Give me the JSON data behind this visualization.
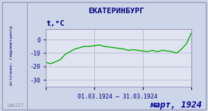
{
  "title": "ЕКАТЕРИНБУРГ",
  "ylabel": "t,°C",
  "xlabel": "01.03.1924 – 31.03.1924",
  "footer_left": "lab127",
  "footer_right": "март, 1924",
  "source_label": "источник: гидрометцентр",
  "ylim": [
    -35,
    8
  ],
  "yticks": [
    0,
    -10,
    -20,
    -30
  ],
  "background_color": "#cdd5e8",
  "plot_bg_color": "#e0e4f0",
  "line_color": "#00aa00",
  "border_color": "#9999bb",
  "title_color": "#000080",
  "label_color": "#000080",
  "footer_right_color": "#000099",
  "days": [
    1,
    2,
    3,
    4,
    5,
    6,
    7,
    8,
    9,
    10,
    11,
    12,
    13,
    14,
    15,
    16,
    17,
    18,
    19,
    20,
    21,
    22,
    23,
    24,
    25,
    26,
    27,
    28,
    29,
    30,
    31
  ],
  "temps": [
    -17,
    -18,
    -16.5,
    -15,
    -11,
    -9,
    -7,
    -6,
    -5,
    -5,
    -4.5,
    -4,
    -5,
    -5.5,
    -6,
    -6.5,
    -7,
    -8,
    -7.5,
    -8,
    -8.5,
    -9,
    -8,
    -9,
    -8,
    -8.5,
    -9,
    -10,
    -7,
    -3,
    5
  ]
}
